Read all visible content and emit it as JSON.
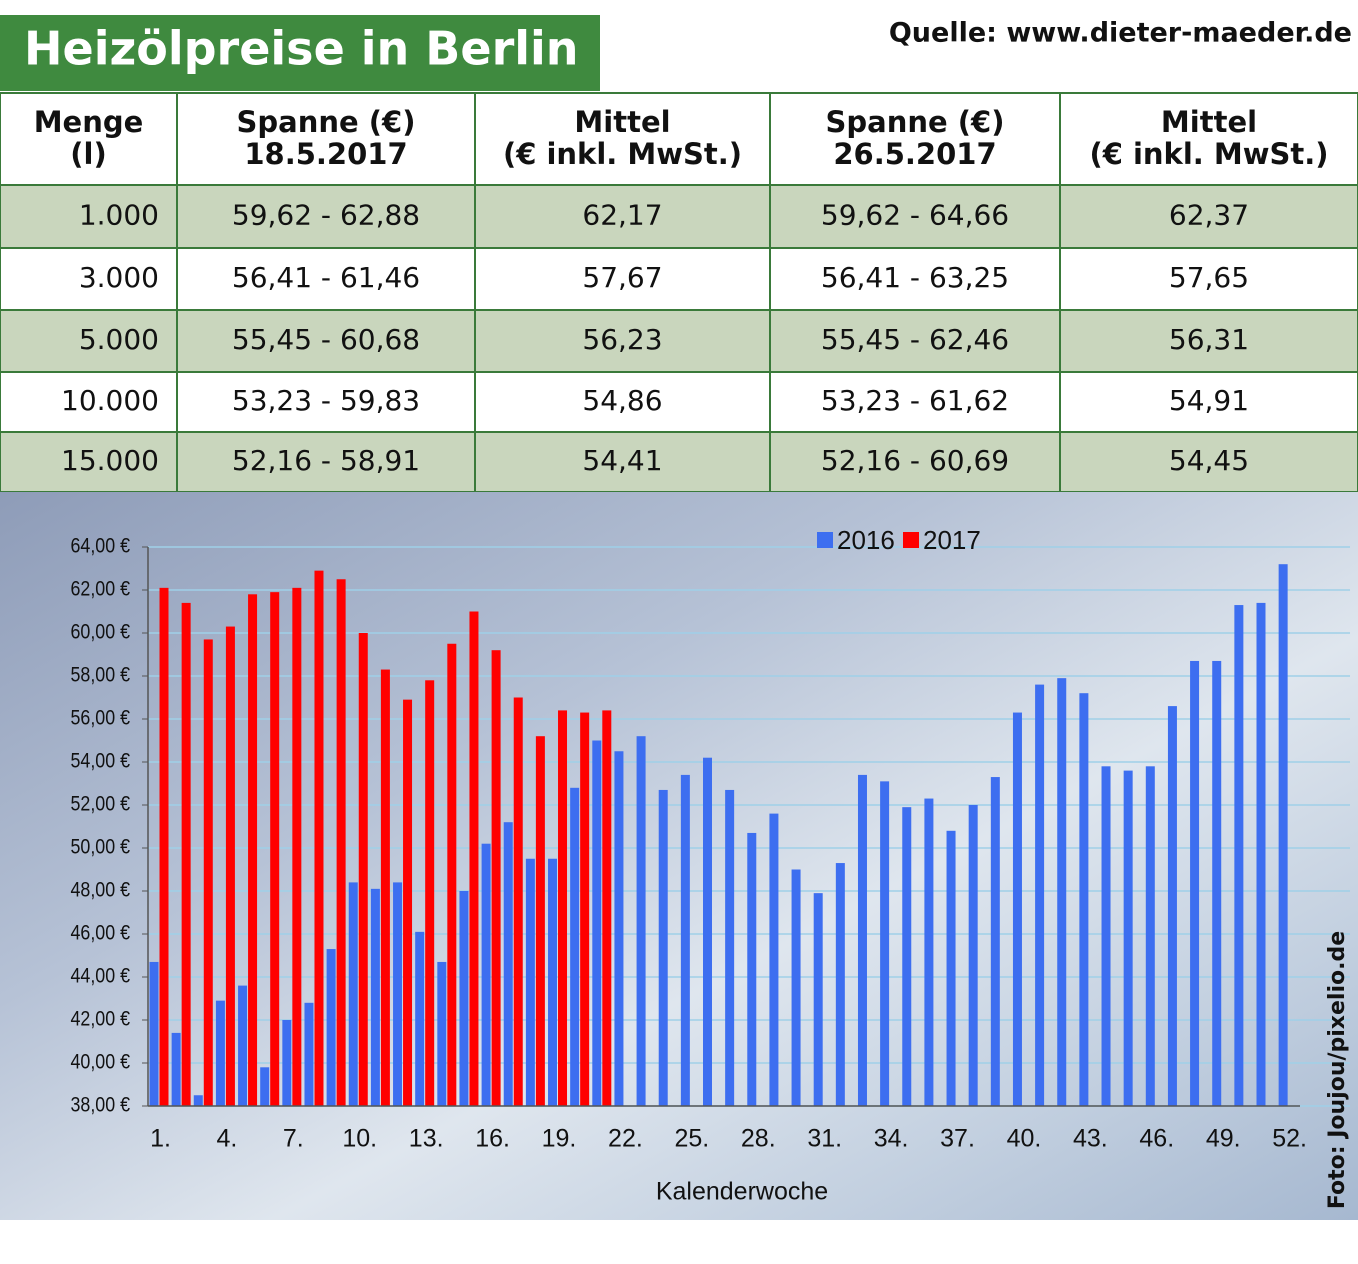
{
  "header": {
    "title": "Heizölpreise in Berlin",
    "source": "Quelle: www.dieter-maeder.de"
  },
  "table": {
    "columns": [
      [
        "Menge",
        "(l)"
      ],
      [
        "Spanne (€)",
        "18.5.2017"
      ],
      [
        "Mittel",
        "(€ inkl. MwSt.)"
      ],
      [
        "Spanne (€)",
        "26.5.2017"
      ],
      [
        "Mittel",
        "(€ inkl. MwSt.)"
      ]
    ],
    "rows": [
      [
        "1.000",
        "59,62 - 62,88",
        "62,17",
        "59,62 - 64,66",
        "62,37"
      ],
      [
        "3.000",
        "56,41 - 61,46",
        "57,67",
        "56,41 - 63,25",
        "57,65"
      ],
      [
        "5.000",
        "55,45 - 60,68",
        "56,23",
        "55,45 - 62,46",
        "56,31"
      ],
      [
        "10.000",
        "53,23 - 59,83",
        "54,86",
        "53,23 - 61,62",
        "54,91"
      ],
      [
        "15.000",
        "52,16 - 58,91",
        "54,41",
        "52,16 - 60,69",
        "54,45"
      ]
    ]
  },
  "photo_credit": "Foto: Joujou/pixelio.de",
  "chart_data": {
    "type": "bar",
    "x_label": "Kalenderwoche",
    "categories": [
      "1.",
      null,
      null,
      "4.",
      null,
      null,
      "7.",
      null,
      null,
      "10.",
      null,
      null,
      "13.",
      null,
      null,
      "16.",
      null,
      null,
      "19.",
      null,
      null,
      "22.",
      null,
      null,
      "25.",
      null,
      null,
      "28.",
      null,
      null,
      "31.",
      null,
      null,
      "34.",
      null,
      null,
      "37.",
      null,
      null,
      "40.",
      null,
      null,
      "43.",
      null,
      null,
      "46.",
      null,
      null,
      "49.",
      null,
      null,
      "52."
    ],
    "series": [
      {
        "name": "2016",
        "color": "#3d6ef0",
        "values": [
          44.7,
          41.4,
          38.5,
          42.9,
          43.6,
          39.8,
          42.0,
          42.8,
          45.3,
          48.4,
          48.1,
          48.4,
          46.1,
          44.7,
          48.0,
          50.2,
          51.2,
          49.5,
          49.5,
          52.8,
          55.0,
          54.5,
          55.2,
          52.7,
          53.4,
          54.2,
          52.7,
          50.7,
          51.6,
          49.0,
          47.9,
          49.3,
          53.4,
          53.1,
          51.9,
          52.3,
          50.8,
          52.0,
          53.3,
          56.3,
          57.6,
          57.9,
          57.2,
          53.8,
          53.6,
          53.8,
          56.6,
          58.7,
          58.7,
          61.3,
          61.4,
          63.2
        ]
      },
      {
        "name": "2017",
        "color": "#ff0000",
        "values": [
          62.1,
          61.4,
          59.7,
          60.3,
          61.8,
          61.9,
          62.1,
          62.9,
          62.5,
          60.0,
          58.3,
          56.9,
          57.8,
          59.5,
          61.0,
          59.2,
          57.0,
          55.2,
          56.4,
          56.3,
          56.4,
          null,
          null,
          null,
          null,
          null,
          null,
          null,
          null,
          null,
          null,
          null,
          null,
          null,
          null,
          null,
          null,
          null,
          null,
          null,
          null,
          null,
          null,
          null,
          null,
          null,
          null,
          null,
          null,
          null,
          null,
          null
        ]
      }
    ],
    "ylim": [
      38,
      64
    ],
    "yticks": [
      {
        "value": 38,
        "label": "38,00 €"
      },
      {
        "value": 40,
        "label": "40,00 €"
      },
      {
        "value": 42,
        "label": "42,00 €"
      },
      {
        "value": 44,
        "label": "44,00 €"
      },
      {
        "value": 46,
        "label": "46,00 €"
      },
      {
        "value": 48,
        "label": "48,00 €"
      },
      {
        "value": 50,
        "label": "50,00 €"
      },
      {
        "value": 52,
        "label": "52,00 €"
      },
      {
        "value": 54,
        "label": "54,00 €"
      },
      {
        "value": 56,
        "label": "56,00 €"
      },
      {
        "value": 58,
        "label": "58,00 €"
      },
      {
        "value": 60,
        "label": "60,00 €"
      },
      {
        "value": 62,
        "label": "62,00 €"
      },
      {
        "value": 64,
        "label": "64,00 €"
      }
    ],
    "grid": true
  }
}
